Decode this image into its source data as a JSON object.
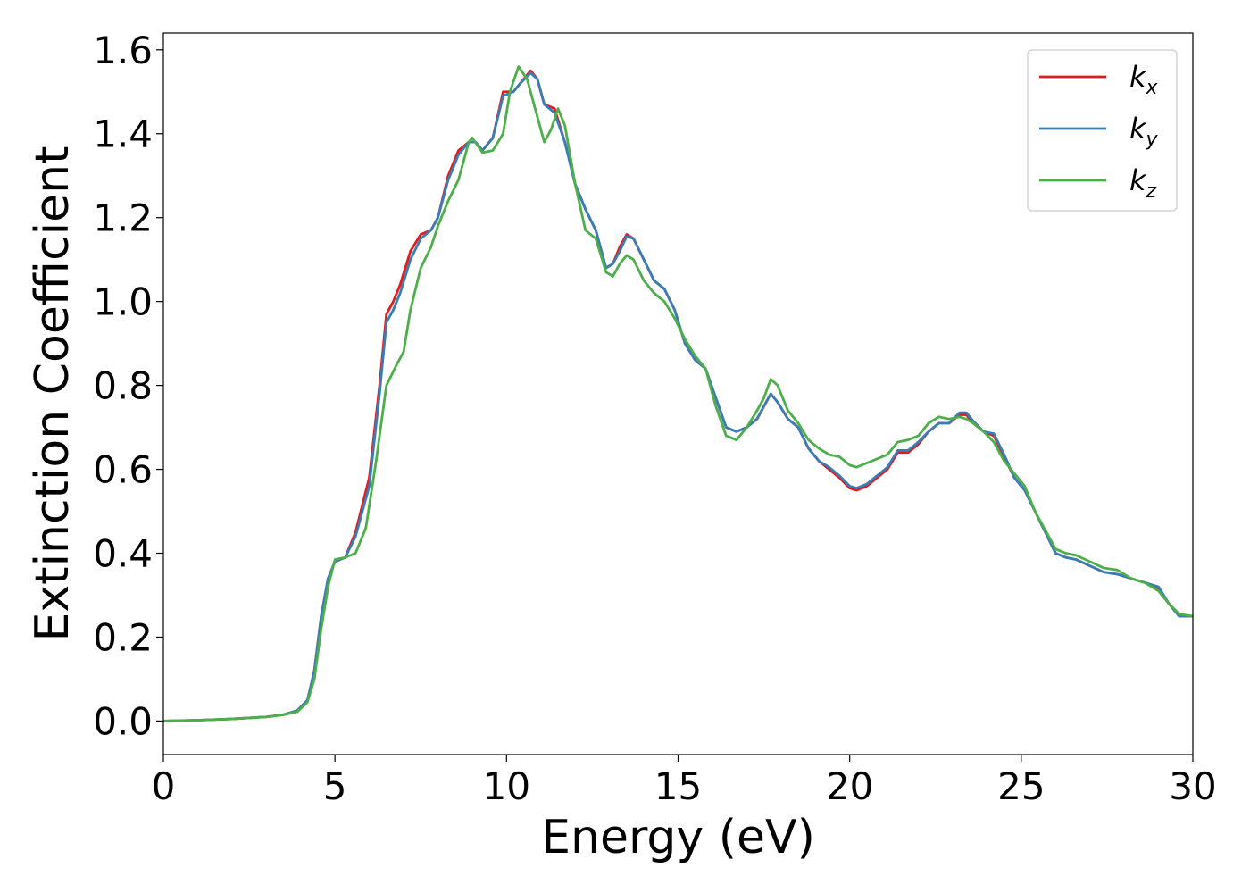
{
  "chart_data": {
    "type": "line",
    "title": "",
    "xlabel": "Energy (eV)",
    "ylabel": "Extinction Coefficient",
    "xlim": [
      0,
      30
    ],
    "ylim": [
      -0.08,
      1.64
    ],
    "xticks": [
      0,
      5,
      10,
      15,
      20,
      25,
      30
    ],
    "xtick_labels": [
      "0",
      "5",
      "10",
      "15",
      "20",
      "25",
      "30"
    ],
    "yticks": [
      0.0,
      0.2,
      0.4,
      0.6,
      0.8,
      1.0,
      1.2,
      1.4,
      1.6
    ],
    "ytick_labels": [
      "0.0",
      "0.2",
      "0.4",
      "0.6",
      "0.8",
      "1.0",
      "1.2",
      "1.4",
      "1.6"
    ],
    "grid": false,
    "legend_position": "top-right",
    "series": [
      {
        "name": "k_x",
        "legend_base": "k",
        "legend_sub": "x",
        "color": "#e41a1c",
        "points": [
          [
            0,
            0.0
          ],
          [
            1,
            0.002
          ],
          [
            2,
            0.005
          ],
          [
            3,
            0.01
          ],
          [
            3.5,
            0.015
          ],
          [
            3.9,
            0.025
          ],
          [
            4.2,
            0.05
          ],
          [
            4.4,
            0.12
          ],
          [
            4.6,
            0.25
          ],
          [
            4.8,
            0.34
          ],
          [
            5.0,
            0.38
          ],
          [
            5.3,
            0.39
          ],
          [
            5.6,
            0.45
          ],
          [
            6.0,
            0.58
          ],
          [
            6.3,
            0.8
          ],
          [
            6.5,
            0.97
          ],
          [
            6.7,
            1.0
          ],
          [
            6.9,
            1.04
          ],
          [
            7.2,
            1.12
          ],
          [
            7.5,
            1.16
          ],
          [
            7.8,
            1.17
          ],
          [
            8.0,
            1.2
          ],
          [
            8.3,
            1.3
          ],
          [
            8.6,
            1.36
          ],
          [
            8.9,
            1.38
          ],
          [
            9.1,
            1.38
          ],
          [
            9.3,
            1.36
          ],
          [
            9.6,
            1.39
          ],
          [
            9.9,
            1.5
          ],
          [
            10.2,
            1.5
          ],
          [
            10.4,
            1.52
          ],
          [
            10.7,
            1.55
          ],
          [
            10.9,
            1.53
          ],
          [
            11.1,
            1.47
          ],
          [
            11.4,
            1.46
          ],
          [
            11.7,
            1.38
          ],
          [
            12.0,
            1.28
          ],
          [
            12.3,
            1.22
          ],
          [
            12.6,
            1.17
          ],
          [
            12.9,
            1.08
          ],
          [
            13.1,
            1.09
          ],
          [
            13.3,
            1.13
          ],
          [
            13.5,
            1.16
          ],
          [
            13.7,
            1.15
          ],
          [
            14.0,
            1.1
          ],
          [
            14.3,
            1.05
          ],
          [
            14.6,
            1.03
          ],
          [
            14.9,
            0.98
          ],
          [
            15.2,
            0.9
          ],
          [
            15.5,
            0.86
          ],
          [
            15.8,
            0.84
          ],
          [
            16.1,
            0.77
          ],
          [
            16.4,
            0.7
          ],
          [
            16.7,
            0.69
          ],
          [
            17.0,
            0.7
          ],
          [
            17.3,
            0.72
          ],
          [
            17.5,
            0.75
          ],
          [
            17.7,
            0.78
          ],
          [
            17.9,
            0.76
          ],
          [
            18.2,
            0.72
          ],
          [
            18.5,
            0.7
          ],
          [
            18.8,
            0.65
          ],
          [
            19.1,
            0.62
          ],
          [
            19.4,
            0.6
          ],
          [
            19.7,
            0.58
          ],
          [
            20.0,
            0.555
          ],
          [
            20.2,
            0.55
          ],
          [
            20.5,
            0.56
          ],
          [
            20.8,
            0.58
          ],
          [
            21.1,
            0.6
          ],
          [
            21.4,
            0.64
          ],
          [
            21.7,
            0.64
          ],
          [
            22.0,
            0.66
          ],
          [
            22.3,
            0.69
          ],
          [
            22.6,
            0.71
          ],
          [
            22.9,
            0.71
          ],
          [
            23.2,
            0.73
          ],
          [
            23.4,
            0.73
          ],
          [
            23.6,
            0.71
          ],
          [
            23.9,
            0.69
          ],
          [
            24.2,
            0.68
          ],
          [
            24.5,
            0.63
          ],
          [
            24.8,
            0.58
          ],
          [
            25.1,
            0.55
          ],
          [
            25.4,
            0.5
          ],
          [
            25.7,
            0.45
          ],
          [
            26.0,
            0.4
          ],
          [
            26.3,
            0.39
          ],
          [
            26.6,
            0.385
          ],
          [
            27.0,
            0.37
          ],
          [
            27.4,
            0.355
          ],
          [
            27.8,
            0.35
          ],
          [
            28.2,
            0.34
          ],
          [
            28.6,
            0.33
          ],
          [
            29.0,
            0.315
          ],
          [
            29.3,
            0.28
          ],
          [
            29.6,
            0.25
          ],
          [
            30.0,
            0.25
          ]
        ]
      },
      {
        "name": "k_y",
        "legend_base": "k",
        "legend_sub": "y",
        "color": "#377eb8",
        "points": [
          [
            0,
            0.0
          ],
          [
            1,
            0.002
          ],
          [
            2,
            0.005
          ],
          [
            3,
            0.01
          ],
          [
            3.5,
            0.015
          ],
          [
            3.9,
            0.025
          ],
          [
            4.2,
            0.05
          ],
          [
            4.4,
            0.12
          ],
          [
            4.6,
            0.25
          ],
          [
            4.8,
            0.34
          ],
          [
            5.0,
            0.38
          ],
          [
            5.3,
            0.39
          ],
          [
            5.6,
            0.44
          ],
          [
            6.0,
            0.56
          ],
          [
            6.3,
            0.78
          ],
          [
            6.5,
            0.95
          ],
          [
            6.7,
            0.98
          ],
          [
            6.9,
            1.02
          ],
          [
            7.2,
            1.1
          ],
          [
            7.5,
            1.15
          ],
          [
            7.8,
            1.17
          ],
          [
            8.0,
            1.2
          ],
          [
            8.3,
            1.29
          ],
          [
            8.6,
            1.35
          ],
          [
            8.9,
            1.38
          ],
          [
            9.1,
            1.38
          ],
          [
            9.3,
            1.36
          ],
          [
            9.6,
            1.39
          ],
          [
            9.9,
            1.49
          ],
          [
            10.2,
            1.5
          ],
          [
            10.4,
            1.52
          ],
          [
            10.7,
            1.545
          ],
          [
            10.9,
            1.53
          ],
          [
            11.1,
            1.47
          ],
          [
            11.4,
            1.45
          ],
          [
            11.7,
            1.38
          ],
          [
            12.0,
            1.28
          ],
          [
            12.3,
            1.22
          ],
          [
            12.6,
            1.17
          ],
          [
            12.9,
            1.08
          ],
          [
            13.1,
            1.09
          ],
          [
            13.3,
            1.12
          ],
          [
            13.5,
            1.155
          ],
          [
            13.7,
            1.15
          ],
          [
            14.0,
            1.1
          ],
          [
            14.3,
            1.05
          ],
          [
            14.6,
            1.03
          ],
          [
            14.9,
            0.98
          ],
          [
            15.2,
            0.9
          ],
          [
            15.5,
            0.86
          ],
          [
            15.8,
            0.84
          ],
          [
            16.1,
            0.77
          ],
          [
            16.4,
            0.7
          ],
          [
            16.7,
            0.69
          ],
          [
            17.0,
            0.7
          ],
          [
            17.3,
            0.72
          ],
          [
            17.5,
            0.75
          ],
          [
            17.7,
            0.78
          ],
          [
            17.9,
            0.76
          ],
          [
            18.2,
            0.72
          ],
          [
            18.5,
            0.7
          ],
          [
            18.8,
            0.65
          ],
          [
            19.1,
            0.62
          ],
          [
            19.4,
            0.605
          ],
          [
            19.7,
            0.585
          ],
          [
            20.0,
            0.56
          ],
          [
            20.2,
            0.555
          ],
          [
            20.5,
            0.565
          ],
          [
            20.8,
            0.585
          ],
          [
            21.1,
            0.605
          ],
          [
            21.4,
            0.645
          ],
          [
            21.7,
            0.645
          ],
          [
            22.0,
            0.665
          ],
          [
            22.3,
            0.69
          ],
          [
            22.6,
            0.71
          ],
          [
            22.9,
            0.71
          ],
          [
            23.2,
            0.735
          ],
          [
            23.4,
            0.735
          ],
          [
            23.6,
            0.715
          ],
          [
            23.9,
            0.69
          ],
          [
            24.2,
            0.685
          ],
          [
            24.5,
            0.635
          ],
          [
            24.8,
            0.58
          ],
          [
            25.1,
            0.55
          ],
          [
            25.4,
            0.5
          ],
          [
            25.7,
            0.45
          ],
          [
            26.0,
            0.4
          ],
          [
            26.3,
            0.39
          ],
          [
            26.6,
            0.385
          ],
          [
            27.0,
            0.37
          ],
          [
            27.4,
            0.355
          ],
          [
            27.8,
            0.35
          ],
          [
            28.2,
            0.34
          ],
          [
            28.6,
            0.33
          ],
          [
            29.0,
            0.32
          ],
          [
            29.3,
            0.28
          ],
          [
            29.6,
            0.25
          ],
          [
            30.0,
            0.25
          ]
        ]
      },
      {
        "name": "k_z",
        "legend_base": "k",
        "legend_sub": "z",
        "color": "#4daf4a",
        "points": [
          [
            0,
            0.0
          ],
          [
            1,
            0.002
          ],
          [
            2,
            0.005
          ],
          [
            3,
            0.01
          ],
          [
            3.5,
            0.015
          ],
          [
            3.9,
            0.022
          ],
          [
            4.2,
            0.045
          ],
          [
            4.4,
            0.1
          ],
          [
            4.6,
            0.22
          ],
          [
            4.8,
            0.32
          ],
          [
            5.0,
            0.385
          ],
          [
            5.3,
            0.39
          ],
          [
            5.6,
            0.4
          ],
          [
            5.9,
            0.46
          ],
          [
            6.2,
            0.62
          ],
          [
            6.5,
            0.8
          ],
          [
            6.8,
            0.85
          ],
          [
            7.0,
            0.88
          ],
          [
            7.2,
            0.98
          ],
          [
            7.5,
            1.08
          ],
          [
            7.8,
            1.13
          ],
          [
            8.0,
            1.18
          ],
          [
            8.3,
            1.24
          ],
          [
            8.6,
            1.29
          ],
          [
            8.9,
            1.38
          ],
          [
            9.0,
            1.39
          ],
          [
            9.3,
            1.355
          ],
          [
            9.6,
            1.36
          ],
          [
            9.9,
            1.4
          ],
          [
            10.1,
            1.5
          ],
          [
            10.35,
            1.56
          ],
          [
            10.6,
            1.53
          ],
          [
            10.9,
            1.44
          ],
          [
            11.1,
            1.38
          ],
          [
            11.3,
            1.41
          ],
          [
            11.5,
            1.46
          ],
          [
            11.7,
            1.42
          ],
          [
            12.0,
            1.28
          ],
          [
            12.3,
            1.17
          ],
          [
            12.6,
            1.15
          ],
          [
            12.9,
            1.07
          ],
          [
            13.1,
            1.06
          ],
          [
            13.3,
            1.09
          ],
          [
            13.5,
            1.11
          ],
          [
            13.7,
            1.1
          ],
          [
            14.0,
            1.05
          ],
          [
            14.3,
            1.02
          ],
          [
            14.6,
            1.0
          ],
          [
            14.9,
            0.96
          ],
          [
            15.2,
            0.91
          ],
          [
            15.5,
            0.87
          ],
          [
            15.8,
            0.84
          ],
          [
            16.1,
            0.75
          ],
          [
            16.4,
            0.68
          ],
          [
            16.7,
            0.67
          ],
          [
            17.0,
            0.7
          ],
          [
            17.3,
            0.74
          ],
          [
            17.5,
            0.77
          ],
          [
            17.7,
            0.815
          ],
          [
            17.9,
            0.8
          ],
          [
            18.2,
            0.74
          ],
          [
            18.5,
            0.71
          ],
          [
            18.8,
            0.67
          ],
          [
            19.1,
            0.65
          ],
          [
            19.4,
            0.635
          ],
          [
            19.7,
            0.63
          ],
          [
            20.0,
            0.61
          ],
          [
            20.2,
            0.605
          ],
          [
            20.5,
            0.615
          ],
          [
            20.8,
            0.625
          ],
          [
            21.1,
            0.635
          ],
          [
            21.4,
            0.665
          ],
          [
            21.7,
            0.67
          ],
          [
            22.0,
            0.68
          ],
          [
            22.3,
            0.71
          ],
          [
            22.6,
            0.725
          ],
          [
            22.9,
            0.72
          ],
          [
            23.2,
            0.725
          ],
          [
            23.4,
            0.72
          ],
          [
            23.6,
            0.71
          ],
          [
            23.9,
            0.69
          ],
          [
            24.2,
            0.665
          ],
          [
            24.5,
            0.62
          ],
          [
            24.8,
            0.59
          ],
          [
            25.1,
            0.56
          ],
          [
            25.4,
            0.5
          ],
          [
            25.7,
            0.455
          ],
          [
            26.0,
            0.41
          ],
          [
            26.3,
            0.4
          ],
          [
            26.6,
            0.395
          ],
          [
            27.0,
            0.38
          ],
          [
            27.4,
            0.365
          ],
          [
            27.8,
            0.36
          ],
          [
            28.2,
            0.34
          ],
          [
            28.6,
            0.33
          ],
          [
            29.0,
            0.31
          ],
          [
            29.3,
            0.28
          ],
          [
            29.6,
            0.255
          ],
          [
            30.0,
            0.25
          ]
        ]
      }
    ]
  }
}
